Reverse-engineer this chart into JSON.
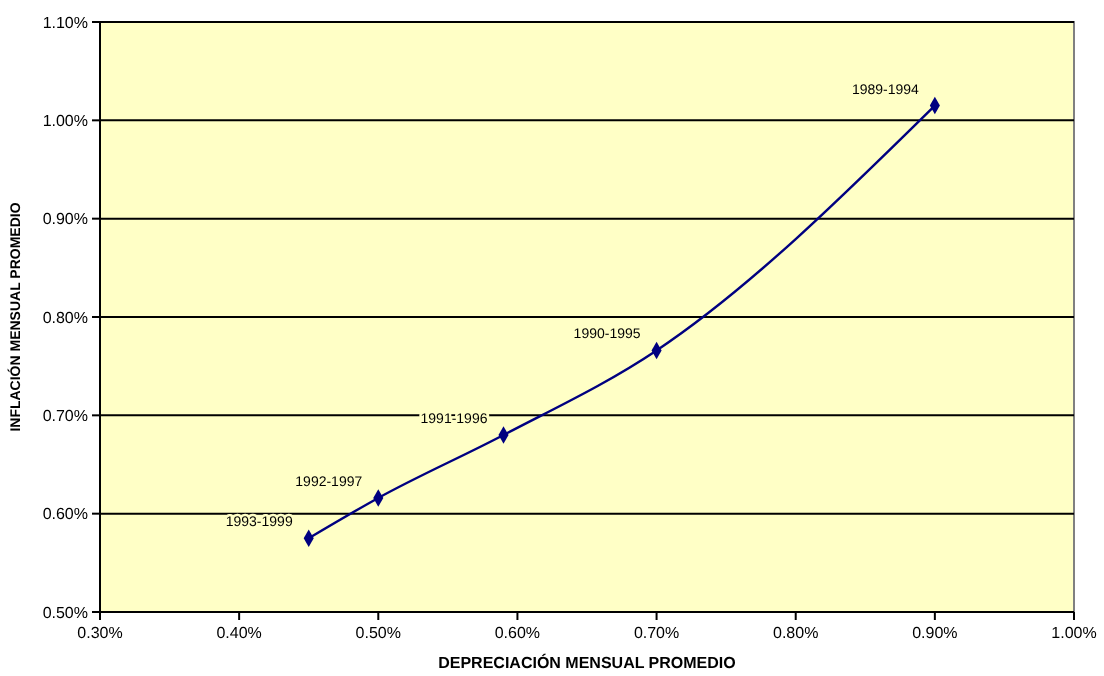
{
  "chart_data": {
    "type": "line",
    "xlabel": "DEPRECIACIÓN MENSUAL PROMEDIO",
    "ylabel": "INFLACIÓN MENSUAL PROMEDIO",
    "x": [
      0.45,
      0.5,
      0.59,
      0.7,
      0.9
    ],
    "series": [
      {
        "color": "#000080",
        "values": [
          0.575,
          0.616,
          0.68,
          0.766,
          1.015
        ]
      }
    ],
    "xlim": [
      0.3,
      1.0
    ],
    "xticks": [
      {
        "value": 0.3,
        "label": "0.30%"
      },
      {
        "value": 0.4,
        "label": "0.40%"
      },
      {
        "value": 0.5,
        "label": "0.50%"
      },
      {
        "value": 0.6,
        "label": "0.60%"
      },
      {
        "value": 0.7,
        "label": "0.70%"
      },
      {
        "value": 0.8,
        "label": "0.80%"
      },
      {
        "value": 0.9,
        "label": "0.90%"
      },
      {
        "value": 1.0,
        "label": "1.00%"
      }
    ],
    "ylim": [
      0.5,
      1.1
    ],
    "yticks": [
      {
        "value": 0.5,
        "label": "0.50%"
      },
      {
        "value": 0.6,
        "label": "0.60%"
      },
      {
        "value": 0.7,
        "label": "0.70%"
      },
      {
        "value": 0.8,
        "label": "0.80%"
      },
      {
        "value": 0.9,
        "label": "0.90%"
      },
      {
        "value": 1.0,
        "label": "1.00%"
      },
      {
        "value": 1.1,
        "label": "1.10%"
      }
    ],
    "grid": "y",
    "marker": "diamond",
    "line_style": "solid",
    "annotations": [
      {
        "text": "1993-1999",
        "x": 0.45,
        "y": 0.575
      },
      {
        "text": "1992-1997",
        "x": 0.5,
        "y": 0.616
      },
      {
        "text": "1991-1996",
        "x": 0.59,
        "y": 0.68
      },
      {
        "text": "1990-1995",
        "x": 0.7,
        "y": 0.766
      },
      {
        "text": "1989-1994",
        "x": 0.9,
        "y": 1.015
      }
    ]
  }
}
